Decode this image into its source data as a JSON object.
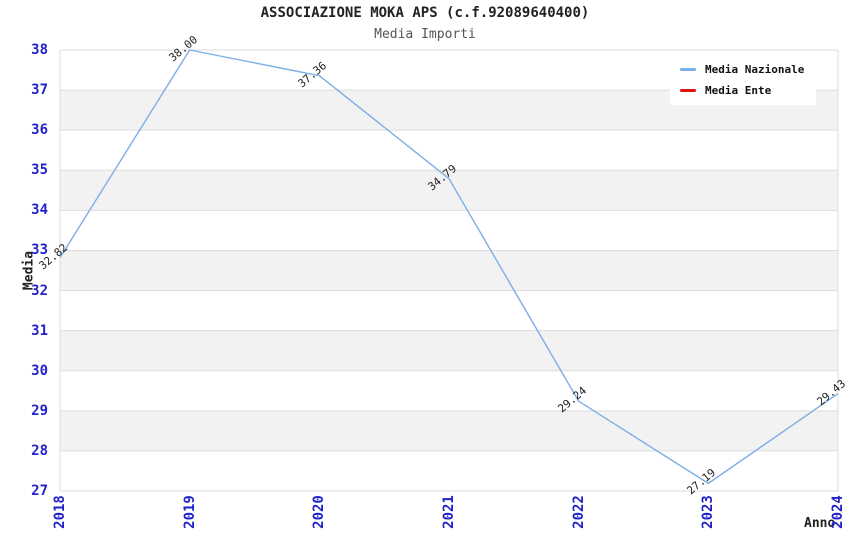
{
  "chart_data": {
    "type": "line",
    "title": "ASSOCIAZIONE MOKA APS (c.f.92089640400)",
    "subtitle": "Media Importi",
    "xlabel": "Anno",
    "ylabel": "Media",
    "categories": [
      "2018",
      "2019",
      "2020",
      "2021",
      "2022",
      "2023",
      "2024"
    ],
    "series": [
      {
        "name": "Media Nazionale",
        "color": "#7cafe6",
        "values": [
          32.82,
          38.0,
          37.36,
          34.79,
          29.24,
          27.19,
          29.43
        ],
        "point_labels": [
          "32.82",
          "38.00",
          "37.36",
          "34.79",
          "29.24",
          "27.19",
          "29.43"
        ]
      },
      {
        "name": "Media Ente",
        "color": "#dd1111",
        "values": [],
        "point_labels": []
      }
    ],
    "ylim": [
      27,
      38
    ],
    "y_ticks": [
      38,
      37,
      36,
      35,
      34,
      33,
      32,
      31,
      30,
      29,
      28,
      27
    ],
    "tick_label_color": "#2222cc",
    "band_colors": [
      "#ffffff",
      "#f2f2f2"
    ],
    "gridline_color": "#dddddd",
    "grid": "horizontal-bands",
    "legend_position": "top-right"
  }
}
